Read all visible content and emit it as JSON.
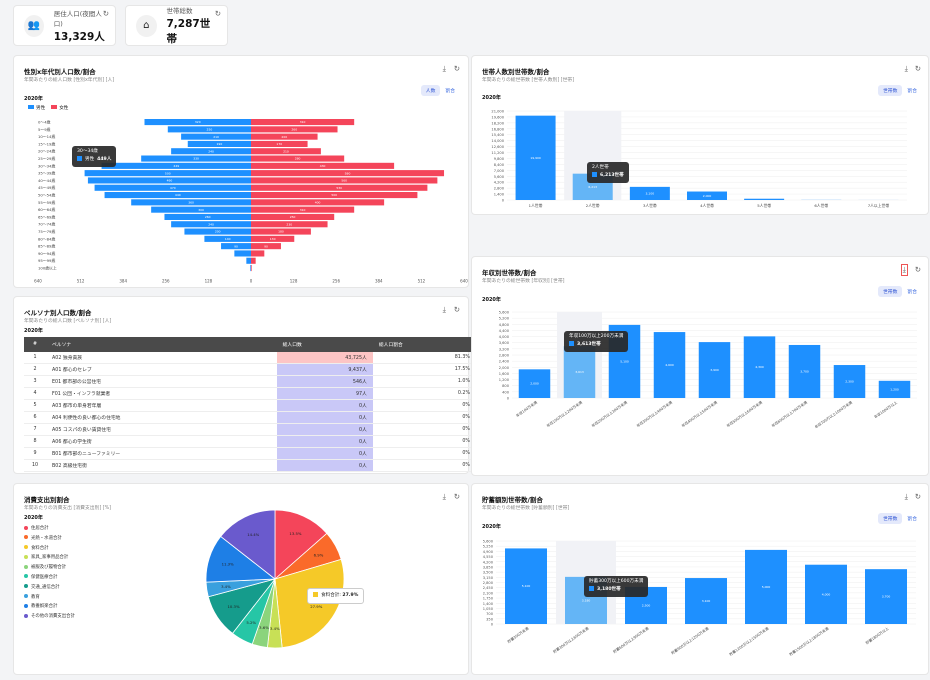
{
  "kpis": [
    {
      "label": "居住人口(夜間人口)",
      "value": "13,329人",
      "icon": "people-icon"
    },
    {
      "label": "世帯総数",
      "value": "7,287世帯",
      "icon": "home-icon"
    }
  ],
  "pyramid": {
    "title": "性別x年代別人口数/割合",
    "subtitle": "年間あたりの総人口数 [性別x年代別] [人]",
    "year": "2020年",
    "legend": [
      "男性",
      "女性"
    ],
    "toggle": [
      "人数",
      "割合"
    ],
    "ages": [
      "0〜4歳",
      "5〜9歳",
      "10〜14歳",
      "15〜19歳",
      "20〜24歳",
      "25〜29歳",
      "30〜34歳",
      "35〜39歳",
      "40〜44歳",
      "45〜49歳",
      "50〜54歳",
      "55〜59歳",
      "60〜64歳",
      "65〜69歳",
      "70〜74歳",
      "75〜79歳",
      "80〜84歳",
      "85〜89歳",
      "90〜94歳",
      "95〜99歳",
      "100歳以上"
    ],
    "male": [
      320,
      250,
      210,
      190,
      240,
      330,
      449,
      500,
      490,
      470,
      440,
      360,
      300,
      260,
      240,
      200,
      140,
      90,
      50,
      14,
      2
    ],
    "female": [
      310,
      260,
      200,
      170,
      210,
      280,
      430,
      580,
      560,
      530,
      500,
      400,
      310,
      250,
      230,
      180,
      130,
      90,
      40,
      14,
      2
    ],
    "axis": [
      "640",
      "512",
      "384",
      "256",
      "128",
      "0",
      "128",
      "256",
      "384",
      "512",
      "640"
    ],
    "tooltip": {
      "title": "30〜34歳",
      "series": "男性",
      "value": "449人"
    }
  },
  "persona": {
    "title": "ペルソナ別人口数/割合",
    "subtitle": "年間あたりの総人口数 [ペルソナ別] [人]",
    "year": "2020年",
    "headers": [
      "#",
      "ペルソナ",
      "総人口数",
      "総人口割合"
    ],
    "rows": [
      [
        "1",
        "A02 独身貴族",
        "43,725人",
        "81.3%"
      ],
      [
        "2",
        "A01 都心のセレブ",
        "9,437人",
        "17.5%"
      ],
      [
        "3",
        "E01 都市部の公営住宅",
        "546人",
        "1.0%"
      ],
      [
        "4",
        "F01 公団・インフラ就業者",
        "97人",
        "0.2%"
      ],
      [
        "5",
        "A03 都市の単身若年層",
        "0人",
        "0%"
      ],
      [
        "6",
        "A04 利便性の良い都心の住宅地",
        "0人",
        "0%"
      ],
      [
        "7",
        "A05 コスパの良い賃貸住宅",
        "0人",
        "0%"
      ],
      [
        "8",
        "A06 都心の学生街",
        "0人",
        "0%"
      ],
      [
        "9",
        "B01 都市部のニューファミリー",
        "0人",
        "0%"
      ],
      [
        "10",
        "B02 高級住宅街",
        "0人",
        "0%"
      ]
    ]
  },
  "spending": {
    "title": "消費支出別割合",
    "subtitle": "年間あたりの消費支出 [消費支出別] [%]",
    "year": "2020年",
    "legend": [
      {
        "label": "住居合計",
        "color": "#f4455a"
      },
      {
        "label": "光熱・水道合計",
        "color": "#fa6a2a"
      },
      {
        "label": "食料合計",
        "color": "#f5c928"
      },
      {
        "label": "家具_家事用品合計",
        "color": "#c8e056"
      },
      {
        "label": "被服及び履物合計",
        "color": "#8bd47c"
      },
      {
        "label": "保健医療合計",
        "color": "#26c6a6"
      },
      {
        "label": "交通_通信合計",
        "color": "#159c8c"
      },
      {
        "label": "教育",
        "color": "#3aa0de"
      },
      {
        "label": "教養娯楽合計",
        "color": "#1e7fe6"
      },
      {
        "label": "その他の消費支出合計",
        "color": "#6a5acd"
      }
    ],
    "tooltip": {
      "label": "食料合計:",
      "value": "27.9%"
    }
  },
  "household": {
    "title": "世帯人数別世帯数/割合",
    "subtitle": "年間あたりの総世帯数 [世帯人数別] [世帯]",
    "year": "2020年",
    "toggle": [
      "世帯数",
      "割合"
    ],
    "tooltip": {
      "title": "2人世帯",
      "series": "6,213世帯"
    }
  },
  "income": {
    "title": "年収別世帯数/割合",
    "subtitle": "年間あたりの総世帯数 [年収別] [世帯]",
    "year": "2020年",
    "toggle": [
      "世帯数",
      "割合"
    ],
    "tooltip": {
      "title": "年収100万以上200万未満",
      "series": "3,613世帯"
    }
  },
  "savings": {
    "title": "貯蓄額別世帯数/割合",
    "subtitle": "年間あたりの総世帯数 [貯蓄額別] [世帯]",
    "year": "2020年",
    "toggle": [
      "世帯数",
      "割合"
    ],
    "tooltip": {
      "title": "貯蓄300万以上600万未満",
      "series": "3,180世帯"
    }
  },
  "chart_data": [
    {
      "type": "bar",
      "title": "世帯人数別世帯数/割合",
      "categories": [
        "1人世帯",
        "2人世帯",
        "3人世帯",
        "4人世帯",
        "5人世帯",
        "6人世帯",
        "7人以上世帯"
      ],
      "values": [
        19900,
        6213,
        3100,
        2000,
        300,
        30,
        10
      ],
      "ylim": [
        0,
        21000
      ],
      "yticks": [
        "21,000",
        "19,600",
        "18,200",
        "16,800",
        "15,400",
        "14,000",
        "12,600",
        "11,200",
        "9,800",
        "8,400",
        "7,000",
        "5,600",
        "4,200",
        "2,800",
        "1,400",
        "0"
      ]
    },
    {
      "type": "bar",
      "title": "年収別世帯数/割合",
      "categories": [
        "年収100万未満",
        "年収100万以上200万未満",
        "年収200万以上300万未満",
        "年収300万以上400万未満",
        "年収400万以上500万未満",
        "年収500万以上600万未満",
        "年収600万以上700万未満",
        "年収700万以上1000万未満",
        "年収1000万以上"
      ],
      "values": [
        2000,
        3613,
        5100,
        4600,
        3900,
        4300,
        3700,
        2300,
        1200
      ],
      "ylim": [
        0,
        6000
      ],
      "yticks": [
        "5,600",
        "5,200",
        "4,800",
        "4,400",
        "4,000",
        "3,600",
        "3,200",
        "2,800",
        "2,400",
        "2,000",
        "1,600",
        "1,200",
        "800",
        "400",
        "0"
      ]
    },
    {
      "type": "bar",
      "title": "貯蓄額別世帯数/割合",
      "categories": [
        "貯蓄300万未満",
        "貯蓄300万以上600万未満",
        "貯蓄600万以上900万未満",
        "貯蓄900万以上1200万未満",
        "貯蓄1200万以上1500万未満",
        "貯蓄1500万以上1800万未満",
        "貯蓄1800万以上"
      ],
      "values": [
        5100,
        3180,
        2500,
        3100,
        5000,
        4000,
        3700
      ],
      "ylim": [
        0,
        5600
      ],
      "yticks": [
        "5,600",
        "5,250",
        "4,900",
        "4,550",
        "4,200",
        "3,850",
        "3,500",
        "3,150",
        "2,800",
        "2,450",
        "2,100",
        "1,750",
        "1,400",
        "1,050",
        "700",
        "350",
        "0"
      ]
    },
    {
      "type": "pie",
      "title": "消費支出別割合",
      "categories": [
        "住居合計",
        "光熱・水道合計",
        "食料合計",
        "家具_家事用品合計",
        "被服及び履物合計",
        "保健医療合計",
        "交通_通信合計",
        "教育",
        "教養娯楽合計",
        "その他の消費支出合計"
      ],
      "values": [
        13.5,
        6.9,
        27.9,
        3.4,
        3.6,
        5.2,
        10.3,
        3.4,
        11.3,
        14.4
      ]
    }
  ]
}
